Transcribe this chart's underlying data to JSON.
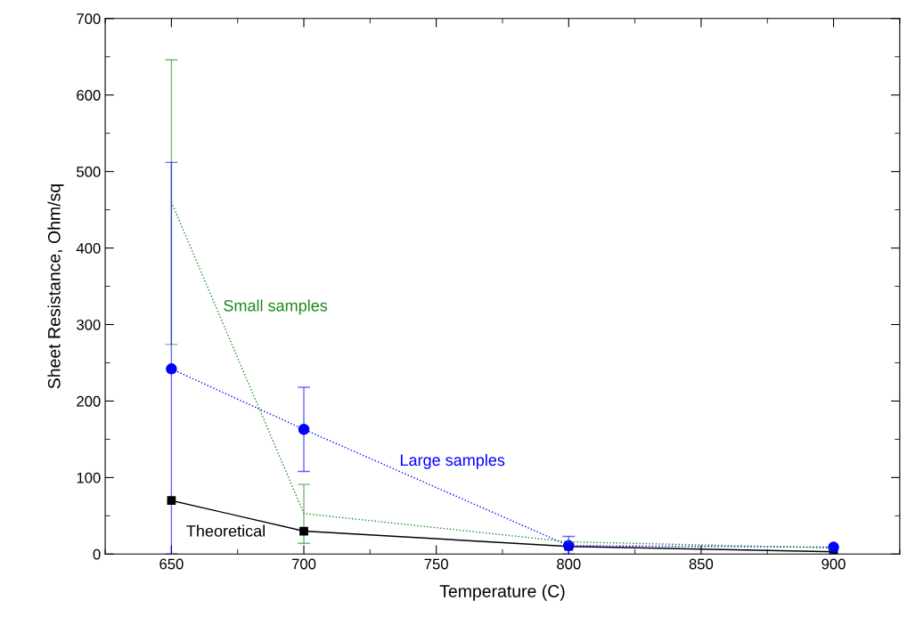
{
  "chart_data": {
    "type": "line",
    "xlabel": "Temperature (C)",
    "ylabel": "Sheet Resistance, Ohm/sq",
    "x": [
      650,
      700,
      800,
      900
    ],
    "series": [
      {
        "name": "Small samples",
        "color": "#1a8a1a",
        "values": [
          460,
          53,
          16,
          8
        ],
        "errors": [
          [
            274,
            646
          ],
          [
            14,
            91
          ],
          null,
          null
        ],
        "marker": "none",
        "line_style": "dotted"
      },
      {
        "name": "Large samples",
        "color": "#0000ff",
        "values": [
          242,
          163,
          11,
          9
        ],
        "errors": [
          [
            0,
            512
          ],
          [
            108,
            218
          ],
          [
            0,
            23
          ],
          null
        ],
        "marker": "circle",
        "line_style": "dotted"
      },
      {
        "name": "Theoretical",
        "color": "#000000",
        "values": [
          70,
          30,
          10,
          3
        ],
        "marker": "square",
        "line_style": "solid"
      }
    ],
    "xlim": [
      625,
      925
    ],
    "xticks": [
      650,
      700,
      750,
      800,
      850,
      900
    ],
    "ylim": [
      0,
      700
    ],
    "yticks": [
      0,
      100,
      200,
      300,
      400,
      500,
      600,
      700
    ],
    "grid": false,
    "legend": false
  }
}
